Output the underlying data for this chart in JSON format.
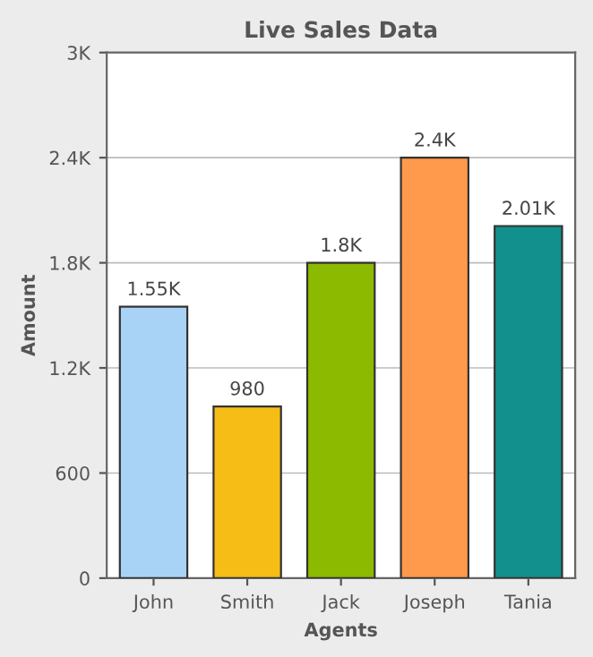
{
  "chart_data": {
    "type": "bar",
    "title": "Live Sales Data",
    "xlabel": "Agents",
    "ylabel": "Amount",
    "categories": [
      "John",
      "Smith",
      "Jack",
      "Joseph",
      "Tania"
    ],
    "values": [
      1550,
      980,
      1800,
      2400,
      2010
    ],
    "value_labels": [
      "1.55K",
      "980",
      "1.8K",
      "2.4K",
      "2.01K"
    ],
    "colors": [
      "#a9d2f7",
      "#f6bd16",
      "#8cba00",
      "#ff9a4d",
      "#12908e"
    ],
    "ylim": [
      0,
      3000
    ],
    "yticks": [
      0,
      600,
      {
        "value": 1200,
        "label": "1.2K"
      },
      {
        "value": 1800,
        "label": "1.8K"
      },
      {
        "value": 2400,
        "label": "2.4K"
      },
      {
        "value": 3000,
        "label": "3K"
      }
    ],
    "grid": "y",
    "legend": false
  }
}
